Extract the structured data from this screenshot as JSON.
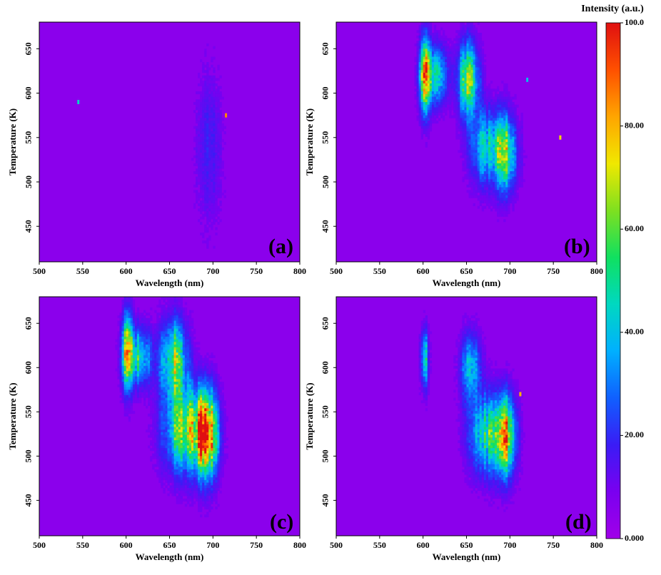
{
  "chart_data": [
    {
      "type": "heatmap",
      "panel": "(a)",
      "xlabel": "Wavelength (nm)",
      "ylabel": "Temperature (K)",
      "xlim": [
        500,
        800
      ],
      "ylim": [
        410,
        680
      ],
      "xticks": [
        500,
        550,
        600,
        650,
        700,
        750,
        800
      ],
      "yticks": [
        450,
        500,
        550,
        600,
        650
      ],
      "background": 5,
      "blobs": [
        {
          "wavelength": 695,
          "temperature": 540,
          "width_nm": 9,
          "height_K": 55,
          "intensity": 12
        }
      ],
      "spots": [
        {
          "wavelength": 545,
          "temperature": 590,
          "intensity": 45
        },
        {
          "wavelength": 715,
          "temperature": 575,
          "intensity": 85
        }
      ]
    },
    {
      "type": "heatmap",
      "panel": "(b)",
      "xlabel": "Wavelength (nm)",
      "ylabel": "Temperature (K)",
      "xlim": [
        500,
        800
      ],
      "ylim": [
        410,
        680
      ],
      "xticks": [
        500,
        550,
        600,
        650,
        700,
        750,
        800
      ],
      "yticks": [
        450,
        500,
        550,
        600,
        650
      ],
      "background": 5,
      "blobs": [
        {
          "wavelength": 602,
          "temperature": 620,
          "width_nm": 4,
          "height_K": 28,
          "intensity": 72
        },
        {
          "wavelength": 615,
          "temperature": 620,
          "width_nm": 9,
          "height_K": 22,
          "intensity": 35
        },
        {
          "wavelength": 652,
          "temperature": 615,
          "width_nm": 8,
          "height_K": 28,
          "intensity": 55
        },
        {
          "wavelength": 672,
          "temperature": 540,
          "width_nm": 12,
          "height_K": 28,
          "intensity": 35
        },
        {
          "wavelength": 694,
          "temperature": 532,
          "width_nm": 9,
          "height_K": 28,
          "intensity": 55
        }
      ],
      "spots": [
        {
          "wavelength": 758,
          "temperature": 550,
          "intensity": 75
        },
        {
          "wavelength": 720,
          "temperature": 615,
          "intensity": 40
        }
      ]
    },
    {
      "type": "heatmap",
      "panel": "(c)",
      "xlabel": "Wavelength (nm)",
      "ylabel": "Temperature (K)",
      "xlim": [
        500,
        800
      ],
      "ylim": [
        410,
        680
      ],
      "xticks": [
        500,
        550,
        600,
        650,
        700,
        750,
        800
      ],
      "yticks": [
        450,
        500,
        550,
        600,
        650
      ],
      "background": 5,
      "blobs": [
        {
          "wavelength": 602,
          "temperature": 618,
          "width_nm": 4,
          "height_K": 28,
          "intensity": 82
        },
        {
          "wavelength": 615,
          "temperature": 612,
          "width_nm": 10,
          "height_K": 22,
          "intensity": 40
        },
        {
          "wavelength": 655,
          "temperature": 608,
          "width_nm": 10,
          "height_K": 30,
          "intensity": 55
        },
        {
          "wavelength": 668,
          "temperature": 530,
          "width_nm": 16,
          "height_K": 32,
          "intensity": 58
        },
        {
          "wavelength": 693,
          "temperature": 525,
          "width_nm": 8,
          "height_K": 32,
          "intensity": 85
        }
      ],
      "spots": []
    },
    {
      "type": "heatmap",
      "panel": "(d)",
      "xlabel": "Wavelength (nm)",
      "ylabel": "Temperature (K)",
      "xlim": [
        500,
        800
      ],
      "ylim": [
        410,
        680
      ],
      "xticks": [
        500,
        550,
        600,
        650,
        700,
        750,
        800
      ],
      "yticks": [
        450,
        500,
        550,
        600,
        650
      ],
      "background": 5,
      "blobs": [
        {
          "wavelength": 602,
          "temperature": 610,
          "width_nm": 3,
          "height_K": 22,
          "intensity": 40
        },
        {
          "wavelength": 655,
          "temperature": 600,
          "width_nm": 8,
          "height_K": 25,
          "intensity": 32
        },
        {
          "wavelength": 675,
          "temperature": 525,
          "width_nm": 14,
          "height_K": 30,
          "intensity": 45
        },
        {
          "wavelength": 694,
          "temperature": 522,
          "width_nm": 8,
          "height_K": 30,
          "intensity": 62
        }
      ],
      "spots": [
        {
          "wavelength": 712,
          "temperature": 570,
          "intensity": 80
        }
      ]
    }
  ],
  "colorbar": {
    "title": "Intensity (a.u.)",
    "min": 0,
    "max": 100,
    "tick_labels": [
      "100.0",
      "80.00",
      "60.00",
      "40.00",
      "20.00",
      "0.000"
    ],
    "tick_values": [
      100,
      80,
      60,
      40,
      20,
      0
    ],
    "colormap": [
      "#a000e8",
      "#7a00f0",
      "#3a1cf5",
      "#1060ff",
      "#00b0ff",
      "#00d8c0",
      "#10e060",
      "#7ee020",
      "#f0e800",
      "#ffa500",
      "#ff5000",
      "#e01010"
    ]
  }
}
